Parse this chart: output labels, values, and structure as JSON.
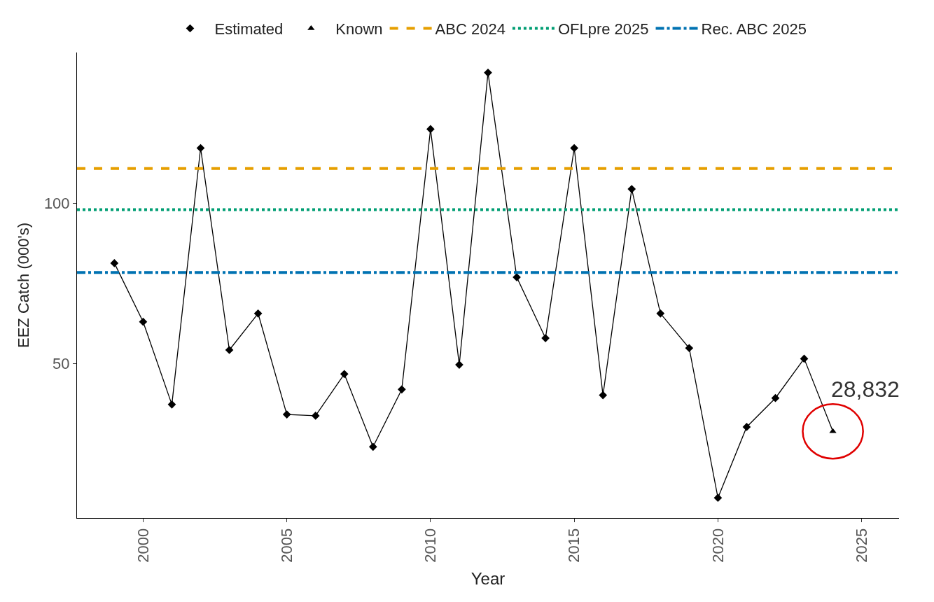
{
  "chart_data": {
    "type": "line",
    "xlabel": "Year",
    "ylabel": "EEZ Catch (000's)",
    "xlim": [
      1997.7,
      2026.3
    ],
    "xticks": [
      2000,
      2005,
      2010,
      2015,
      2020,
      2025
    ],
    "ylim": [
      1.8,
      147
    ],
    "yticks": [
      50,
      100
    ],
    "series": [
      {
        "color": "#000000",
        "marker": "none",
        "x": [
          1999,
          2000,
          2001,
          2002,
          2003,
          2004,
          2005,
          2006,
          2007,
          2008,
          2009,
          2010,
          2011,
          2012,
          2013,
          2014,
          2015,
          2016,
          2017,
          2018,
          2019,
          2020,
          2021,
          2022,
          2023,
          2024
        ],
        "values": [
          81.3,
          63.0,
          37.2,
          117.2,
          54.2,
          65.6,
          34.1,
          33.7,
          46.7,
          24.0,
          41.9,
          123.1,
          49.6,
          140.7,
          76.9,
          57.9,
          117.2,
          40.1,
          104.4,
          65.6,
          54.8,
          8.1,
          30.2,
          39.2,
          51.5,
          28.832
        ]
      },
      {
        "type": "scatter",
        "name": "Estimated",
        "color": "#000000",
        "marker": "diamond",
        "x": [
          1999,
          2000,
          2001,
          2002,
          2003,
          2004,
          2005,
          2006,
          2007,
          2008,
          2009,
          2010,
          2011,
          2012,
          2013,
          2014,
          2015,
          2016,
          2017,
          2018,
          2019,
          2020,
          2021,
          2022,
          2023
        ],
        "values": [
          81.3,
          63.0,
          37.2,
          117.2,
          54.2,
          65.6,
          34.1,
          33.7,
          46.7,
          24.0,
          41.9,
          123.1,
          49.6,
          140.7,
          76.9,
          57.9,
          117.2,
          40.1,
          104.4,
          65.6,
          54.8,
          8.1,
          30.2,
          39.2,
          51.5
        ]
      },
      {
        "type": "scatter",
        "name": "Known",
        "color": "#000000",
        "marker": "triangle",
        "x": [
          2024
        ],
        "values": [
          28.832
        ]
      }
    ],
    "ref_lines": [
      {
        "axis": "y",
        "value": 110.8,
        "label": "ABC 2024",
        "color": "#E69F00",
        "line_style": "dashed"
      },
      {
        "axis": "y",
        "value": 98.0,
        "label": "OFLpre 2025",
        "color": "#009E73",
        "line_style": "dotted"
      },
      {
        "axis": "y",
        "value": 78.4,
        "label": "Rec. ABC 2025",
        "color": "#0072B2",
        "line_style": "dashdot"
      }
    ],
    "annotations": [
      {
        "text": "28,832",
        "x": 2024,
        "y": 28.832
      }
    ],
    "grid": false,
    "legend": "top"
  }
}
